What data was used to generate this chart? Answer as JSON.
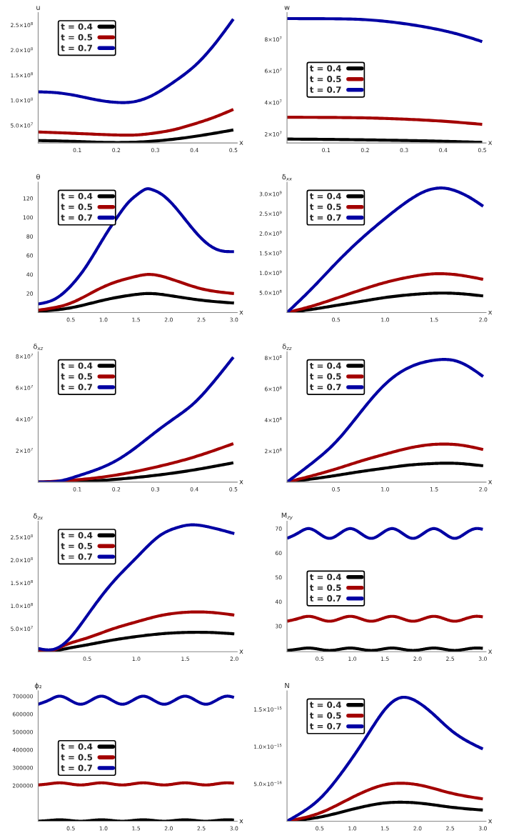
{
  "chart_data": [
    {
      "type": "line",
      "ylabel": "u",
      "xlabel": "x",
      "legend": "top left",
      "xlim": [
        0,
        0.51
      ],
      "ylim": [
        15000000.0,
        275000000.0
      ],
      "xticks": [
        0.1,
        0.2,
        0.3,
        0.4,
        0.5
      ],
      "yticks": [
        {
          "value": 50000000.0,
          "label": "5.0×10$^{7}$"
        },
        {
          "value": 100000000.0,
          "label": "1.0×10$^{8}$"
        },
        {
          "value": 150000000.0,
          "label": "1.5×10$^{8}$"
        },
        {
          "value": 200000000.0,
          "label": "2.0×10$^{8}$"
        },
        {
          "value": 250000000.0,
          "label": "2.5×10$^{8}$"
        }
      ],
      "series": [
        {
          "name": "t = 0.4",
          "color": "#000000",
          "x": [
            0,
            0.1,
            0.2,
            0.3,
            0.4,
            0.5
          ],
          "values": [
            20000000.0,
            18000000.0,
            16000000.0,
            19000000.0,
            28000000.0,
            41000000.0
          ]
        },
        {
          "name": "t = 0.5",
          "color": "#a30000",
          "x": [
            0,
            0.1,
            0.2,
            0.25,
            0.3,
            0.35,
            0.4,
            0.45,
            0.5
          ],
          "values": [
            37000000.0,
            34000000.0,
            31000000.0,
            31000000.0,
            35000000.0,
            42000000.0,
            53000000.0,
            66000000.0,
            82000000.0
          ]
        },
        {
          "name": "t = 0.7",
          "color": "#0000a3",
          "x": [
            0,
            0.05,
            0.1,
            0.15,
            0.2,
            0.25,
            0.3,
            0.35,
            0.4,
            0.45,
            0.5
          ],
          "values": [
            117000000.0,
            115000000.0,
            109000000.0,
            101000000.0,
            96000000.0,
            98000000.0,
            113000000.0,
            138000000.0,
            168000000.0,
            210000000.0,
            262000000.0
          ]
        }
      ]
    },
    {
      "type": "line",
      "ylabel": "w",
      "xlabel": "x",
      "legend": "left",
      "xlim": [
        0,
        0.51
      ],
      "ylim": [
        14400000.0,
        97000000.0
      ],
      "xticks": [
        0.1,
        0.2,
        0.3,
        0.4,
        0.5
      ],
      "yticks": [
        {
          "value": 20000000.0,
          "label": "2×10$^{7}$"
        },
        {
          "value": 40000000.0,
          "label": "4×10$^{7}$"
        },
        {
          "value": 60000000.0,
          "label": "6×10$^{7}$"
        },
        {
          "value": 80000000.0,
          "label": "8×10$^{7}$"
        }
      ],
      "series": [
        {
          "name": "t = 0.4",
          "color": "#000000",
          "x": [
            0,
            0.1,
            0.2,
            0.3,
            0.4,
            0.5
          ],
          "values": [
            16900000.0,
            16700000.0,
            16400000.0,
            16000000.0,
            15500000.0,
            14800000.0
          ]
        },
        {
          "name": "t = 0.5",
          "color": "#a30000",
          "x": [
            0,
            0.1,
            0.2,
            0.3,
            0.4,
            0.5
          ],
          "values": [
            30700000.0,
            30600000.0,
            30300000.0,
            29500000.0,
            28200000.0,
            26200000.0
          ]
        },
        {
          "name": "t = 0.7",
          "color": "#0000a3",
          "x": [
            0,
            0.1,
            0.2,
            0.3,
            0.4,
            0.45,
            0.5
          ],
          "values": [
            93200000.0,
            93100000.0,
            92500000.0,
            90000000.0,
            85600000.0,
            82500000.0,
            78600000.0
          ]
        }
      ]
    },
    {
      "type": "line",
      "ylabel": "θ",
      "xlabel": "x",
      "legend": "top left",
      "xlim": [
        0,
        3.05
      ],
      "ylim": [
        0,
        137
      ],
      "xticks": [
        0.5,
        {
          "value": 1,
          "label": "1.0"
        },
        1.5,
        {
          "value": 2,
          "label": "2.0"
        },
        2.5,
        {
          "value": 3,
          "label": "3.0"
        }
      ],
      "yticks": [
        20,
        40,
        60,
        80,
        100,
        120
      ],
      "series": [
        {
          "name": "t = 0.4",
          "color": "#000000",
          "x": [
            0,
            0.5,
            1.0,
            1.5,
            1.67,
            2.0,
            2.5,
            3.0
          ],
          "values": [
            1.2,
            5,
            13,
            19,
            20,
            18,
            13,
            10
          ]
        },
        {
          "name": "t = 0.5",
          "color": "#a30000",
          "x": [
            0,
            0.5,
            1.0,
            1.5,
            1.67,
            2.0,
            2.5,
            3.0
          ],
          "values": [
            2.5,
            10,
            27,
            38,
            40,
            36,
            25,
            20
          ]
        },
        {
          "name": "t = 0.7",
          "color": "#0000a3",
          "x": [
            0,
            0.25,
            0.5,
            0.75,
            1.0,
            1.25,
            1.4,
            1.5,
            1.6,
            1.67,
            1.75,
            1.85,
            2.0,
            2.25,
            2.5,
            2.75,
            3.0
          ],
          "values": [
            9,
            14,
            28,
            50,
            78,
            104,
            117,
            123,
            128,
            130,
            129,
            126,
            118,
            98,
            78,
            66,
            64
          ]
        }
      ]
    },
    {
      "type": "line",
      "ylabel": "δ$_{xx}$",
      "xlabel": "x",
      "legend": "top left",
      "xlim": [
        0,
        2.03
      ],
      "ylim": [
        0,
        3300000000.0
      ],
      "xticks": [
        0.5,
        {
          "value": 1,
          "label": "1.0"
        },
        1.5,
        {
          "value": 2,
          "label": "2.0"
        }
      ],
      "yticks": [
        {
          "value": 500000000.0,
          "label": "5.0×10$^{8}$"
        },
        {
          "value": 1000000000.0,
          "label": "1.0×10$^{9}$"
        },
        {
          "value": 1500000000.0,
          "label": "1.5×10$^{9}$"
        },
        {
          "value": 2000000000.0,
          "label": "2.0×10$^{9}$"
        },
        {
          "value": 2500000000.0,
          "label": "2.5×10$^{9}$"
        },
        {
          "value": 3000000000.0,
          "label": "3.0×10$^{9}$"
        }
      ],
      "series": [
        {
          "name": "t = 0.4",
          "color": "#000000",
          "x": [
            0,
            0.25,
            0.5,
            0.75,
            1.0,
            1.25,
            1.5,
            1.75,
            2.0
          ],
          "values": [
            0,
            80000000.0,
            180000000.0,
            280000000.0,
            380000000.0,
            450000000.0,
            490000000.0,
            480000000.0,
            420000000.0
          ]
        },
        {
          "name": "t = 0.5",
          "color": "#a30000",
          "x": [
            0,
            0.25,
            0.5,
            0.75,
            1.0,
            1.25,
            1.5,
            1.75,
            2.0
          ],
          "values": [
            0,
            160000000.0,
            360000000.0,
            570000000.0,
            760000000.0,
            900000000.0,
            980000000.0,
            950000000.0,
            840000000.0
          ]
        },
        {
          "name": "t = 0.7",
          "color": "#0000a3",
          "x": [
            0,
            0.25,
            0.5,
            0.75,
            1.0,
            1.25,
            1.4,
            1.55,
            1.65,
            1.75,
            1.85,
            2.0
          ],
          "values": [
            0,
            600000000.0,
            1250000000.0,
            1850000000.0,
            2380000000.0,
            2850000000.0,
            3060000000.0,
            3150000000.0,
            3130000000.0,
            3050000000.0,
            2930000000.0,
            2690000000.0
          ]
        }
      ]
    },
    {
      "type": "line",
      "ylabel": "δ$_{xz}$",
      "xlabel": "x",
      "legend": "top left",
      "xlim": [
        0,
        0.51
      ],
      "ylim": [
        0,
        83000000.0
      ],
      "xticks": [
        0.1,
        0.2,
        0.3,
        0.4,
        0.5
      ],
      "yticks": [
        {
          "value": 20000000.0,
          "label": "2×10$^{7}$"
        },
        {
          "value": 40000000.0,
          "label": "4×10$^{7}$"
        },
        {
          "value": 60000000.0,
          "label": "6×10$^{7}$"
        },
        {
          "value": 80000000.0,
          "label": "8×10$^{7}$"
        }
      ],
      "series": [
        {
          "name": "t = 0.4",
          "color": "#000000",
          "x": [
            0,
            0.1,
            0.2,
            0.3,
            0.4,
            0.5
          ],
          "values": [
            0,
            300000.0,
            1800000.0,
            4300000.0,
            7800000.0,
            12300000.0
          ]
        },
        {
          "name": "t = 0.5",
          "color": "#a30000",
          "x": [
            0,
            0.1,
            0.2,
            0.3,
            0.4,
            0.5
          ],
          "values": [
            0,
            1500000.0,
            4500000.0,
            9500000.0,
            16000000.0,
            24500000.0
          ]
        },
        {
          "name": "t = 0.7",
          "color": "#0000a3",
          "x": [
            0,
            0.05,
            0.1,
            0.15,
            0.2,
            0.25,
            0.3,
            0.35,
            0.4,
            0.45,
            0.5
          ],
          "values": [
            0,
            500000.0,
            3800000.0,
            8000000.0,
            13700000.0,
            22000000.0,
            31700000.0,
            40800000.0,
            50400000.0,
            64000000.0,
            79500000.0
          ]
        }
      ]
    },
    {
      "type": "line",
      "ylabel": "δ$_{zz}$",
      "xlabel": "x",
      "legend": "top left",
      "xlim": [
        0,
        2.03
      ],
      "ylim": [
        0,
        840000000.0
      ],
      "xticks": [
        0.5,
        {
          "value": 1,
          "label": "1.0"
        },
        1.5,
        {
          "value": 2,
          "label": "2.0"
        }
      ],
      "yticks": [
        {
          "value": 200000000.0,
          "label": "2×10$^{8}$"
        },
        {
          "value": 400000000.0,
          "label": "4×10$^{8}$"
        },
        {
          "value": 600000000.0,
          "label": "6×10$^{8}$"
        },
        {
          "value": 800000000.0,
          "label": "8×10$^{8}$"
        }
      ],
      "series": [
        {
          "name": "t = 0.4",
          "color": "#000000",
          "x": [
            0,
            0.25,
            0.5,
            0.75,
            1.0,
            1.25,
            1.5,
            1.6,
            1.75,
            2.0
          ],
          "values": [
            0,
            20000000.0,
            43000000.0,
            68000000.0,
            90000000.0,
            110000000.0,
            120000000.0,
            122000000.0,
            120000000.0,
            105000000.0
          ]
        },
        {
          "name": "t = 0.5",
          "color": "#a30000",
          "x": [
            0,
            0.25,
            0.5,
            0.75,
            1.0,
            1.25,
            1.5,
            1.6,
            1.75,
            2.0
          ],
          "values": [
            0,
            40000000.0,
            85000000.0,
            135000000.0,
            180000000.0,
            220000000.0,
            243000000.0,
            245000000.0,
            240000000.0,
            210000000.0
          ]
        },
        {
          "name": "t = 0.7",
          "color": "#0000a3",
          "x": [
            0,
            0.25,
            0.5,
            0.75,
            1.0,
            1.25,
            1.5,
            1.6,
            1.75,
            2.0
          ],
          "values": [
            0,
            120000000.0,
            260000000.0,
            450000000.0,
            630000000.0,
            740000000.0,
            785000000.0,
            790000000.0,
            775000000.0,
            680000000.0
          ]
        }
      ]
    },
    {
      "type": "line",
      "ylabel": "δ$_{zx}$",
      "xlabel": "x",
      "legend": "top left",
      "xlim": [
        0,
        2.03
      ],
      "ylim": [
        0,
        285000000.0
      ],
      "xticks": [
        0.5,
        {
          "value": 1,
          "label": "1.0"
        },
        1.5,
        {
          "value": 2,
          "label": "2.0"
        }
      ],
      "yticks": [
        {
          "value": 50000000.0,
          "label": "5.0×10$^{7}$"
        },
        {
          "value": 100000000.0,
          "label": "1.0×10$^{8}$"
        },
        {
          "value": 150000000.0,
          "label": "1.5×10$^{8}$"
        },
        {
          "value": 200000000.0,
          "label": "2.0×10$^{8}$"
        },
        {
          "value": 250000000.0,
          "label": "2.5×10$^{8}$"
        }
      ],
      "series": [
        {
          "name": "t = 0.4",
          "color": "#000000",
          "x": [
            0,
            0.12,
            0.25,
            0.5,
            0.75,
            1.0,
            1.25,
            1.5,
            1.75,
            2.0
          ],
          "values": [
            1000000.0,
            0,
            5000000.0,
            15000000.0,
            25000000.0,
            33000000.0,
            39000000.0,
            42000000.0,
            42000000.0,
            39000000.0
          ]
        },
        {
          "name": "t = 0.5",
          "color": "#a30000",
          "x": [
            0,
            0.12,
            0.25,
            0.5,
            0.75,
            1.0,
            1.25,
            1.5,
            1.75,
            2.0
          ],
          "values": [
            3000000.0,
            1000000.0,
            12000000.0,
            30000000.0,
            49000000.0,
            65000000.0,
            79000000.0,
            86000000.0,
            86000000.0,
            80000000.0
          ]
        },
        {
          "name": "t = 0.7",
          "color": "#0000a3",
          "x": [
            0,
            0.12,
            0.25,
            0.5,
            0.75,
            1.0,
            1.1,
            1.25,
            1.4,
            1.55,
            1.65,
            1.75,
            2.0
          ],
          "values": [
            7000000.0,
            4000000.0,
            15000000.0,
            79000000.0,
            149000000.0,
            205000000.0,
            227000000.0,
            255000000.0,
            270000000.0,
            277000000.0,
            276000000.0,
            272000000.0,
            258000000.0
          ]
        }
      ]
    },
    {
      "type": "line",
      "ylabel": "M$_{zy}$",
      "xlabel": "x",
      "legend": "left",
      "xlim": [
        0,
        3.05
      ],
      "ylim": [
        19.5,
        73
      ],
      "xticks": [
        0.5,
        {
          "value": 1,
          "label": "1.0"
        },
        1.5,
        {
          "value": 2,
          "label": "2.0"
        },
        2.5,
        {
          "value": 3,
          "label": "3.0"
        }
      ],
      "yticks": [
        30,
        40,
        50,
        60,
        70
      ],
      "series": [
        {
          "name": "t = 0.4",
          "color": "#000000",
          "x": [
            0,
            0.16,
            0.33,
            0.49,
            0.65,
            0.81,
            0.97,
            1.13,
            1.29,
            1.45,
            1.61,
            1.77,
            1.93,
            2.09,
            2.25,
            2.41,
            2.57,
            2.73,
            2.89,
            3.0
          ],
          "values": [
            20,
            20.5,
            21,
            20.5,
            20,
            20.5,
            21,
            20.5,
            20,
            20.5,
            21,
            20.5,
            20,
            20.5,
            21,
            20.5,
            20,
            20.5,
            21,
            20.9
          ]
        },
        {
          "name": "t = 0.5",
          "color": "#a30000",
          "x": [
            0,
            0.16,
            0.33,
            0.49,
            0.65,
            0.81,
            0.97,
            1.13,
            1.29,
            1.45,
            1.61,
            1.77,
            1.93,
            2.09,
            2.25,
            2.41,
            2.57,
            2.73,
            2.89,
            3.0
          ],
          "values": [
            32,
            33,
            34,
            33,
            32,
            33,
            34,
            33,
            32,
            33,
            34,
            33,
            32,
            33,
            34,
            33,
            32,
            33,
            34,
            33.8
          ]
        },
        {
          "name": "t = 0.7",
          "color": "#0000a3",
          "x": [
            0,
            0.16,
            0.33,
            0.49,
            0.65,
            0.81,
            0.97,
            1.13,
            1.29,
            1.45,
            1.61,
            1.77,
            1.93,
            2.09,
            2.25,
            2.41,
            2.57,
            2.73,
            2.89,
            3.0
          ],
          "values": [
            66,
            68,
            70,
            68,
            66,
            68,
            70,
            68,
            66,
            68,
            70,
            68,
            66,
            68,
            70,
            68,
            66,
            68,
            70,
            69.7
          ]
        }
      ]
    },
    {
      "type": "line",
      "ylabel": "ϕ₂",
      "xlabel": "x",
      "legend": "left",
      "xlim": [
        0,
        3.05
      ],
      "ylim": [
        0,
        730000.0
      ],
      "xticks": [
        0.5,
        {
          "value": 1,
          "label": "1.0"
        },
        1.5,
        {
          "value": 2,
          "label": "2.0"
        },
        2.5,
        {
          "value": 3,
          "label": "3.0"
        }
      ],
      "yticks": [
        200000,
        300000,
        400000,
        500000,
        600000,
        700000
      ],
      "series": [
        {
          "name": "t = 0.4",
          "color": "#000000",
          "x": [
            0,
            0.16,
            0.33,
            0.49,
            0.65,
            0.81,
            0.97,
            1.13,
            1.29,
            1.45,
            1.61,
            1.77,
            1.93,
            2.09,
            2.25,
            2.41,
            2.57,
            2.73,
            2.89,
            3.0
          ],
          "values": [
            0,
            4000,
            8000,
            4000,
            0,
            4000,
            8000,
            4000,
            0,
            4000,
            8000,
            4000,
            0,
            4000,
            8000,
            4000,
            0,
            4000,
            8000,
            7000
          ]
        },
        {
          "name": "t = 0.5",
          "color": "#a30000",
          "x": [
            0,
            0.16,
            0.33,
            0.49,
            0.65,
            0.81,
            0.97,
            1.13,
            1.29,
            1.45,
            1.61,
            1.77,
            1.93,
            2.09,
            2.25,
            2.41,
            2.57,
            2.73,
            2.89,
            3.0
          ],
          "values": [
            203000,
            209000,
            215000,
            209000,
            203000,
            209000,
            215000,
            209000,
            203000,
            209000,
            215000,
            209000,
            203000,
            209000,
            215000,
            209000,
            203000,
            209000,
            215000,
            213000
          ]
        },
        {
          "name": "t = 0.7",
          "color": "#0000a3",
          "x": [
            0,
            0.16,
            0.33,
            0.49,
            0.65,
            0.81,
            0.97,
            1.13,
            1.29,
            1.45,
            1.61,
            1.77,
            1.93,
            2.09,
            2.25,
            2.41,
            2.57,
            2.73,
            2.89,
            3.0
          ],
          "values": [
            655000,
            677000,
            700000,
            677000,
            655000,
            677000,
            700000,
            677000,
            655000,
            677000,
            700000,
            677000,
            655000,
            677000,
            700000,
            677000,
            655000,
            677000,
            700000,
            693000
          ]
        }
      ]
    },
    {
      "type": "line",
      "ylabel": "N",
      "xlabel": "x",
      "legend": "top left",
      "xlim": [
        0,
        3.05
      ],
      "ylim": [
        0,
        1.75e-15
      ],
      "xticks": [
        0.5,
        {
          "value": 1,
          "label": "1.0"
        },
        1.5,
        {
          "value": 2,
          "label": "2.0"
        },
        2.5,
        {
          "value": 3,
          "label": "3.0"
        }
      ],
      "yticks": [
        {
          "value": 5e-16,
          "label": "5.0×10$^{−16}$"
        },
        {
          "value": 1e-15,
          "label": "1.0×10$^{−15}$"
        },
        {
          "value": 1.5e-15,
          "label": "1.5×10$^{−15}$"
        }
      ],
      "series": [
        {
          "name": "t = 0.4",
          "color": "#000000",
          "x": [
            0,
            0.5,
            1.0,
            1.25,
            1.5,
            1.75,
            2.0,
            2.5,
            3.0
          ],
          "values": [
            0,
            5.5e-17,
            1.6e-16,
            2.1e-16,
            2.45e-16,
            2.55e-16,
            2.45e-16,
            1.9e-16,
            1.5e-16
          ]
        },
        {
          "name": "t = 0.5",
          "color": "#a30000",
          "x": [
            0,
            0.5,
            1.0,
            1.25,
            1.5,
            1.75,
            2.0,
            2.5,
            3.0
          ],
          "values": [
            0,
            1.1e-16,
            3.2e-16,
            4.2e-16,
            4.9e-16,
            5.1e-16,
            4.9e-16,
            3.8e-16,
            3e-16
          ]
        },
        {
          "name": "t = 0.7",
          "color": "#0000a3",
          "x": [
            0,
            0.25,
            0.5,
            0.75,
            1.0,
            1.25,
            1.5,
            1.75,
            2.0,
            2.25,
            2.5,
            2.75,
            3.0
          ],
          "values": [
            0,
            1.3e-16,
            3e-16,
            5.5e-16,
            8.5e-16,
            1.18e-15,
            1.5e-15,
            1.66e-15,
            1.6e-15,
            1.43e-15,
            1.23e-15,
            1.08e-15,
            9.7e-16
          ]
        }
      ]
    }
  ]
}
